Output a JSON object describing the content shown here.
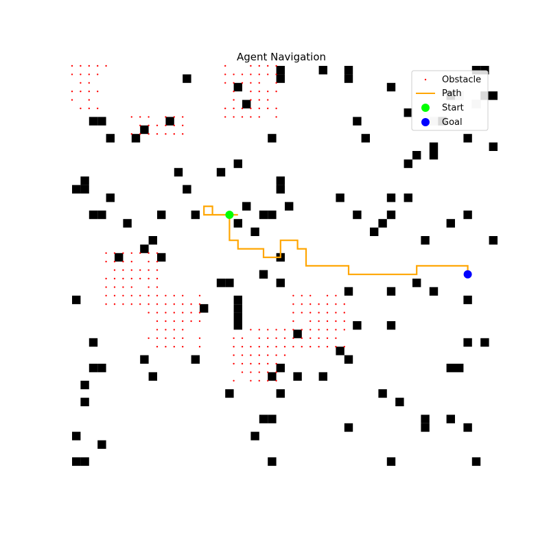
{
  "chart_data": {
    "type": "scatter",
    "title": "Agent Navigation",
    "xlabel": "",
    "ylabel": "",
    "grid": false,
    "axes_visible": false,
    "xlim": [
      -0.5,
      49.5
    ],
    "ylim": [
      49.5,
      -0.5
    ],
    "colors": {
      "obstacle_cell": "#000000",
      "visited_cell": "#c8c8c8",
      "obstacle_marker": "#ff0000",
      "path": "#ffa500",
      "start": "#00ff00",
      "goal": "#0000ff"
    },
    "legend": {
      "placement": "top-right",
      "entries": [
        {
          "label": "Obstacle",
          "marker": "dot",
          "color": "#ff0000"
        },
        {
          "label": "Path",
          "marker": "line",
          "color": "#ffa500"
        },
        {
          "label": "Start",
          "marker": "circle",
          "color": "#00ff00"
        },
        {
          "label": "Goal",
          "marker": "circle",
          "color": "#0000ff"
        }
      ]
    },
    "start": [
      18,
      17
    ],
    "goal": [
      46,
      24
    ],
    "path": [
      [
        18,
        17
      ],
      [
        19,
        17
      ],
      [
        18,
        17
      ],
      [
        17,
        17
      ],
      [
        16,
        17
      ],
      [
        16,
        16
      ],
      [
        15,
        16
      ],
      [
        15,
        17
      ],
      [
        16,
        17
      ],
      [
        17,
        17
      ],
      [
        18,
        17
      ],
      [
        18,
        18
      ],
      [
        18,
        19
      ],
      [
        18,
        20
      ],
      [
        19,
        20
      ],
      [
        19,
        21
      ],
      [
        20,
        21
      ],
      [
        21,
        21
      ],
      [
        22,
        21
      ],
      [
        22,
        22
      ],
      [
        23,
        22
      ],
      [
        24,
        22
      ],
      [
        24,
        21
      ],
      [
        24,
        20
      ],
      [
        25,
        20
      ],
      [
        26,
        20
      ],
      [
        26,
        21
      ],
      [
        27,
        21
      ],
      [
        27,
        22
      ],
      [
        27,
        23
      ],
      [
        28,
        23
      ],
      [
        29,
        23
      ],
      [
        30,
        23
      ],
      [
        31,
        23
      ],
      [
        32,
        23
      ],
      [
        32,
        24
      ],
      [
        33,
        24
      ],
      [
        34,
        24
      ],
      [
        35,
        24
      ],
      [
        36,
        24
      ],
      [
        37,
        24
      ],
      [
        38,
        24
      ],
      [
        39,
        24
      ],
      [
        40,
        24
      ],
      [
        40,
        23
      ],
      [
        41,
        23
      ],
      [
        42,
        23
      ],
      [
        43,
        23
      ],
      [
        44,
        23
      ],
      [
        45,
        23
      ],
      [
        46,
        23
      ],
      [
        46,
        24
      ]
    ],
    "obstacle_cells": [
      [
        47,
        0
      ],
      [
        48,
        0
      ],
      [
        24,
        0
      ],
      [
        32,
        0
      ],
      [
        29,
        0
      ],
      [
        24,
        1
      ],
      [
        32,
        1
      ],
      [
        13,
        1
      ],
      [
        19,
        2
      ],
      [
        37,
        2
      ],
      [
        44,
        3
      ],
      [
        45,
        3
      ],
      [
        48,
        3
      ],
      [
        49,
        3
      ],
      [
        20,
        4
      ],
      [
        47,
        4
      ],
      [
        39,
        5
      ],
      [
        43,
        6
      ],
      [
        2,
        6
      ],
      [
        3,
        6
      ],
      [
        11,
        6
      ],
      [
        33,
        6
      ],
      [
        8,
        7
      ],
      [
        7,
        8
      ],
      [
        4,
        8
      ],
      [
        23,
        8
      ],
      [
        34,
        8
      ],
      [
        46,
        8
      ],
      [
        49,
        9
      ],
      [
        42,
        9
      ],
      [
        42,
        10
      ],
      [
        40,
        10
      ],
      [
        19,
        11
      ],
      [
        39,
        11
      ],
      [
        12,
        12
      ],
      [
        17,
        12
      ],
      [
        1,
        13
      ],
      [
        24,
        13
      ],
      [
        0,
        14
      ],
      [
        1,
        14
      ],
      [
        13,
        14
      ],
      [
        24,
        14
      ],
      [
        4,
        15
      ],
      [
        31,
        15
      ],
      [
        37,
        15
      ],
      [
        39,
        15
      ],
      [
        20,
        16
      ],
      [
        25,
        16
      ],
      [
        3,
        17
      ],
      [
        2,
        17
      ],
      [
        10,
        17
      ],
      [
        14,
        17
      ],
      [
        22,
        17
      ],
      [
        23,
        17
      ],
      [
        33,
        17
      ],
      [
        37,
        17
      ],
      [
        46,
        17
      ],
      [
        19,
        18
      ],
      [
        44,
        18
      ],
      [
        36,
        18
      ],
      [
        6,
        18
      ],
      [
        35,
        19
      ],
      [
        21,
        19
      ],
      [
        9,
        20
      ],
      [
        8,
        21
      ],
      [
        41,
        20
      ],
      [
        49,
        20
      ],
      [
        5,
        22
      ],
      [
        10,
        22
      ],
      [
        24,
        22
      ],
      [
        22,
        24
      ],
      [
        40,
        25
      ],
      [
        18,
        25
      ],
      [
        17,
        25
      ],
      [
        24,
        25
      ],
      [
        32,
        26
      ],
      [
        37,
        26
      ],
      [
        42,
        26
      ],
      [
        19,
        27
      ],
      [
        0,
        27
      ],
      [
        46,
        27
      ],
      [
        15,
        28
      ],
      [
        19,
        28
      ],
      [
        19,
        29
      ],
      [
        19,
        30
      ],
      [
        33,
        30
      ],
      [
        37,
        30
      ],
      [
        26,
        31
      ],
      [
        2,
        32
      ],
      [
        46,
        32
      ],
      [
        48,
        32
      ],
      [
        31,
        33
      ],
      [
        8,
        34
      ],
      [
        14,
        34
      ],
      [
        32,
        34
      ],
      [
        2,
        35
      ],
      [
        3,
        35
      ],
      [
        24,
        35
      ],
      [
        44,
        35
      ],
      [
        45,
        35
      ],
      [
        9,
        36
      ],
      [
        23,
        36
      ],
      [
        26,
        36
      ],
      [
        29,
        36
      ],
      [
        1,
        37
      ],
      [
        18,
        38
      ],
      [
        24,
        38
      ],
      [
        36,
        38
      ],
      [
        1,
        39
      ],
      [
        38,
        39
      ],
      [
        22,
        41
      ],
      [
        23,
        41
      ],
      [
        41,
        41
      ],
      [
        44,
        41
      ],
      [
        32,
        42
      ],
      [
        41,
        42
      ],
      [
        46,
        42
      ],
      [
        0,
        43
      ],
      [
        21,
        43
      ],
      [
        3,
        44
      ],
      [
        0,
        46
      ],
      [
        1,
        46
      ],
      [
        23,
        46
      ],
      [
        37,
        46
      ],
      [
        47,
        46
      ]
    ],
    "visited_cells": [
      [
        45,
        3
      ],
      [
        47,
        4
      ],
      [
        42,
        6
      ]
    ],
    "obstacle_markers": [
      [
        -0.5,
        -0.5
      ],
      [
        0.5,
        -0.5
      ],
      [
        1.5,
        -0.5
      ],
      [
        2.5,
        -0.5
      ],
      [
        3.5,
        -0.5
      ],
      [
        -0.5,
        0.5
      ],
      [
        0.5,
        0.5
      ],
      [
        1.5,
        0.5
      ],
      [
        2.5,
        0.5
      ],
      [
        0.5,
        1.5
      ],
      [
        1.5,
        1.5
      ],
      [
        -0.5,
        2.5
      ],
      [
        0.5,
        2.5
      ],
      [
        1.5,
        2.5
      ],
      [
        2.5,
        2.5
      ],
      [
        -0.5,
        3.5
      ],
      [
        1.5,
        3.5
      ],
      [
        0.5,
        4.5
      ],
      [
        1.5,
        4.5
      ],
      [
        2.5,
        4.5
      ],
      [
        6.5,
        5.5
      ],
      [
        7.5,
        5.5
      ],
      [
        8.5,
        5.5
      ],
      [
        10.5,
        5.5
      ],
      [
        11.5,
        5.5
      ],
      [
        12.5,
        5.5
      ],
      [
        7.5,
        6.5
      ],
      [
        8.5,
        6.5
      ],
      [
        9.5,
        6.5
      ],
      [
        10.5,
        6.5
      ],
      [
        11.5,
        6.5
      ],
      [
        12.5,
        6.5
      ],
      [
        6.5,
        7.5
      ],
      [
        7.5,
        7.5
      ],
      [
        8.5,
        7.5
      ],
      [
        9.5,
        7.5
      ],
      [
        10.5,
        7.5
      ],
      [
        11.5,
        7.5
      ],
      [
        12.5,
        7.5
      ],
      [
        17.5,
        -0.5
      ],
      [
        20.5,
        -0.5
      ],
      [
        21.5,
        -0.5
      ],
      [
        22.5,
        -0.5
      ],
      [
        23.5,
        -0.5
      ],
      [
        17.5,
        0.5
      ],
      [
        18.5,
        0.5
      ],
      [
        19.5,
        0.5
      ],
      [
        20.5,
        0.5
      ],
      [
        21.5,
        0.5
      ],
      [
        22.5,
        0.5
      ],
      [
        23.5,
        0.5
      ],
      [
        17.5,
        1.5
      ],
      [
        18.5,
        1.5
      ],
      [
        19.5,
        1.5
      ],
      [
        20.5,
        1.5
      ],
      [
        21.5,
        1.5
      ],
      [
        23.5,
        1.5
      ],
      [
        18.5,
        2.5
      ],
      [
        20.5,
        2.5
      ],
      [
        21.5,
        2.5
      ],
      [
        22.5,
        2.5
      ],
      [
        23.5,
        2.5
      ],
      [
        18.5,
        3.5
      ],
      [
        20.5,
        3.5
      ],
      [
        21.5,
        3.5
      ],
      [
        22.5,
        3.5
      ],
      [
        17.5,
        4.5
      ],
      [
        18.5,
        4.5
      ],
      [
        19.5,
        4.5
      ],
      [
        20.5,
        4.5
      ],
      [
        21.5,
        4.5
      ],
      [
        22.5,
        4.5
      ],
      [
        23.5,
        4.5
      ],
      [
        17.5,
        5.5
      ],
      [
        18.5,
        5.5
      ],
      [
        19.5,
        5.5
      ],
      [
        20.5,
        5.5
      ],
      [
        21.5,
        5.5
      ],
      [
        23.5,
        5.5
      ],
      [
        3.5,
        21.5
      ],
      [
        4.5,
        21.5
      ],
      [
        5.5,
        21.5
      ],
      [
        6.5,
        21.5
      ],
      [
        7.5,
        21.5
      ],
      [
        8.5,
        21.5
      ],
      [
        9.5,
        21.5
      ],
      [
        3.5,
        22.5
      ],
      [
        4.5,
        22.5
      ],
      [
        5.5,
        22.5
      ],
      [
        6.5,
        22.5
      ],
      [
        8.5,
        22.5
      ],
      [
        9.5,
        22.5
      ],
      [
        4.5,
        23.5
      ],
      [
        5.5,
        23.5
      ],
      [
        6.5,
        23.5
      ],
      [
        7.5,
        23.5
      ],
      [
        8.5,
        23.5
      ],
      [
        9.5,
        23.5
      ],
      [
        3.5,
        24.5
      ],
      [
        4.5,
        24.5
      ],
      [
        5.5,
        24.5
      ],
      [
        6.5,
        24.5
      ],
      [
        7.5,
        24.5
      ],
      [
        8.5,
        24.5
      ],
      [
        9.5,
        24.5
      ],
      [
        3.5,
        25.5
      ],
      [
        4.5,
        25.5
      ],
      [
        5.5,
        25.5
      ],
      [
        6.5,
        25.5
      ],
      [
        8.5,
        25.5
      ],
      [
        9.5,
        25.5
      ],
      [
        3.5,
        26.5
      ],
      [
        4.5,
        26.5
      ],
      [
        5.5,
        26.5
      ],
      [
        6.5,
        26.5
      ],
      [
        7.5,
        26.5
      ],
      [
        8.5,
        26.5
      ],
      [
        9.5,
        26.5
      ],
      [
        10.5,
        26.5
      ],
      [
        11.5,
        26.5
      ],
      [
        12.5,
        26.5
      ],
      [
        14.5,
        26.5
      ],
      [
        3.5,
        27.5
      ],
      [
        4.5,
        27.5
      ],
      [
        5.5,
        27.5
      ],
      [
        6.5,
        27.5
      ],
      [
        7.5,
        27.5
      ],
      [
        8.5,
        27.5
      ],
      [
        9.5,
        27.5
      ],
      [
        10.5,
        27.5
      ],
      [
        11.5,
        27.5
      ],
      [
        12.5,
        27.5
      ],
      [
        13.5,
        27.5
      ],
      [
        14.5,
        27.5
      ],
      [
        8.5,
        28.5
      ],
      [
        9.5,
        28.5
      ],
      [
        10.5,
        28.5
      ],
      [
        11.5,
        28.5
      ],
      [
        12.5,
        28.5
      ],
      [
        13.5,
        28.5
      ],
      [
        14.5,
        28.5
      ],
      [
        9.5,
        29.5
      ],
      [
        10.5,
        29.5
      ],
      [
        11.5,
        29.5
      ],
      [
        12.5,
        29.5
      ],
      [
        13.5,
        29.5
      ],
      [
        14.5,
        29.5
      ],
      [
        9.5,
        30.5
      ],
      [
        10.5,
        30.5
      ],
      [
        11.5,
        30.5
      ],
      [
        12.5,
        30.5
      ],
      [
        8.5,
        31.5
      ],
      [
        9.5,
        31.5
      ],
      [
        10.5,
        31.5
      ],
      [
        11.5,
        31.5
      ],
      [
        12.5,
        31.5
      ],
      [
        14.5,
        31.5
      ],
      [
        9.5,
        32.5
      ],
      [
        10.5,
        32.5
      ],
      [
        11.5,
        32.5
      ],
      [
        12.5,
        32.5
      ],
      [
        14.5,
        32.5
      ],
      [
        25.5,
        26.5
      ],
      [
        26.5,
        26.5
      ],
      [
        27.5,
        26.5
      ],
      [
        29.5,
        26.5
      ],
      [
        30.5,
        26.5
      ],
      [
        25.5,
        27.5
      ],
      [
        26.5,
        27.5
      ],
      [
        27.5,
        27.5
      ],
      [
        28.5,
        27.5
      ],
      [
        29.5,
        27.5
      ],
      [
        30.5,
        27.5
      ],
      [
        31.5,
        27.5
      ],
      [
        25.5,
        28.5
      ],
      [
        26.5,
        28.5
      ],
      [
        27.5,
        28.5
      ],
      [
        28.5,
        28.5
      ],
      [
        29.5,
        28.5
      ],
      [
        30.5,
        28.5
      ],
      [
        31.5,
        28.5
      ],
      [
        25.5,
        29.5
      ],
      [
        27.5,
        29.5
      ],
      [
        28.5,
        29.5
      ],
      [
        29.5,
        29.5
      ],
      [
        30.5,
        29.5
      ],
      [
        31.5,
        29.5
      ],
      [
        25.5,
        30.5
      ],
      [
        26.5,
        30.5
      ],
      [
        27.5,
        30.5
      ],
      [
        28.5,
        30.5
      ],
      [
        29.5,
        30.5
      ],
      [
        30.5,
        30.5
      ],
      [
        31.5,
        30.5
      ],
      [
        20.5,
        30.5
      ],
      [
        21.5,
        30.5
      ],
      [
        22.5,
        30.5
      ],
      [
        23.5,
        30.5
      ],
      [
        24.5,
        30.5
      ],
      [
        18.5,
        31.5
      ],
      [
        19.5,
        31.5
      ],
      [
        21.5,
        31.5
      ],
      [
        22.5,
        31.5
      ],
      [
        23.5,
        31.5
      ],
      [
        24.5,
        31.5
      ],
      [
        25.5,
        31.5
      ],
      [
        26.5,
        31.5
      ],
      [
        27.5,
        31.5
      ],
      [
        28.5,
        31.5
      ],
      [
        29.5,
        31.5
      ],
      [
        30.5,
        31.5
      ],
      [
        18.5,
        32.5
      ],
      [
        19.5,
        32.5
      ],
      [
        20.5,
        32.5
      ],
      [
        21.5,
        32.5
      ],
      [
        22.5,
        32.5
      ],
      [
        23.5,
        32.5
      ],
      [
        24.5,
        32.5
      ],
      [
        25.5,
        32.5
      ],
      [
        26.5,
        32.5
      ],
      [
        27.5,
        32.5
      ],
      [
        28.5,
        32.5
      ],
      [
        29.5,
        32.5
      ],
      [
        30.5,
        32.5
      ],
      [
        31.5,
        32.5
      ],
      [
        18.5,
        33.5
      ],
      [
        19.5,
        33.5
      ],
      [
        20.5,
        33.5
      ],
      [
        21.5,
        33.5
      ],
      [
        22.5,
        33.5
      ],
      [
        23.5,
        33.5
      ],
      [
        24.5,
        33.5
      ],
      [
        18.5,
        34.5
      ],
      [
        19.5,
        34.5
      ],
      [
        20.5,
        34.5
      ],
      [
        21.5,
        34.5
      ],
      [
        22.5,
        34.5
      ],
      [
        23.5,
        34.5
      ],
      [
        19.5,
        35.5
      ],
      [
        20.5,
        35.5
      ],
      [
        21.5,
        35.5
      ],
      [
        22.5,
        35.5
      ],
      [
        23.5,
        35.5
      ],
      [
        18.5,
        36.5
      ],
      [
        20.5,
        36.5
      ],
      [
        21.5,
        36.5
      ],
      [
        22.5,
        36.5
      ],
      [
        23.5,
        36.5
      ]
    ]
  }
}
